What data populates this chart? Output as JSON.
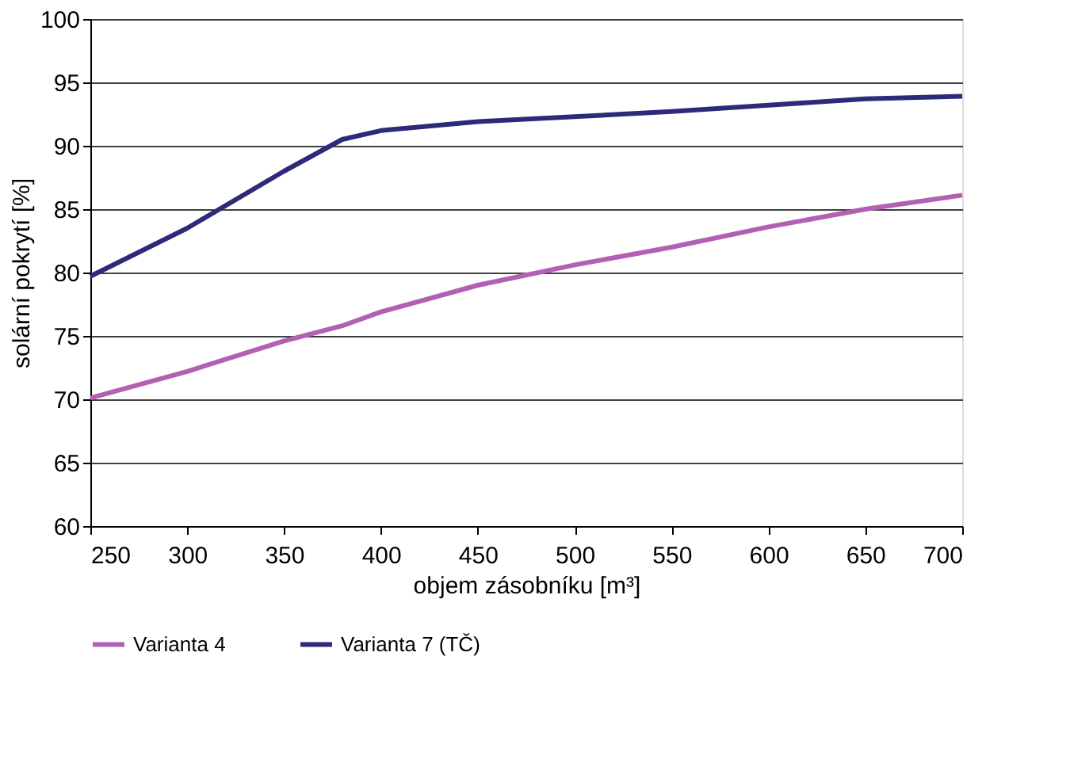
{
  "chart_data": {
    "type": "line",
    "xlabel": "objem zásobníku [m³]",
    "ylabel": "solární pokrytí [%]",
    "x": [
      250,
      300,
      350,
      380,
      400,
      450,
      500,
      550,
      600,
      650,
      700
    ],
    "xlim": [
      250,
      700
    ],
    "xticks": [
      250,
      300,
      350,
      400,
      450,
      500,
      550,
      600,
      650,
      700
    ],
    "ylim": [
      60,
      100
    ],
    "yticks": [
      60,
      65,
      70,
      75,
      80,
      85,
      90,
      95,
      100
    ],
    "grid": "y",
    "legend": "bottom",
    "marker": "none",
    "line_style": "solid",
    "series": [
      {
        "name": "Varianta 4",
        "color": "#b35fb4",
        "values": [
          70.1,
          72.2,
          74.6,
          75.8,
          76.9,
          79.0,
          80.6,
          82.0,
          83.6,
          85.0,
          86.1
        ]
      },
      {
        "name": "Varianta 7 (TČ)",
        "color": "#2e2a7a",
        "values": [
          79.7,
          83.5,
          88.0,
          90.5,
          91.2,
          91.9,
          92.3,
          92.7,
          93.2,
          93.7,
          93.9
        ]
      }
    ]
  }
}
